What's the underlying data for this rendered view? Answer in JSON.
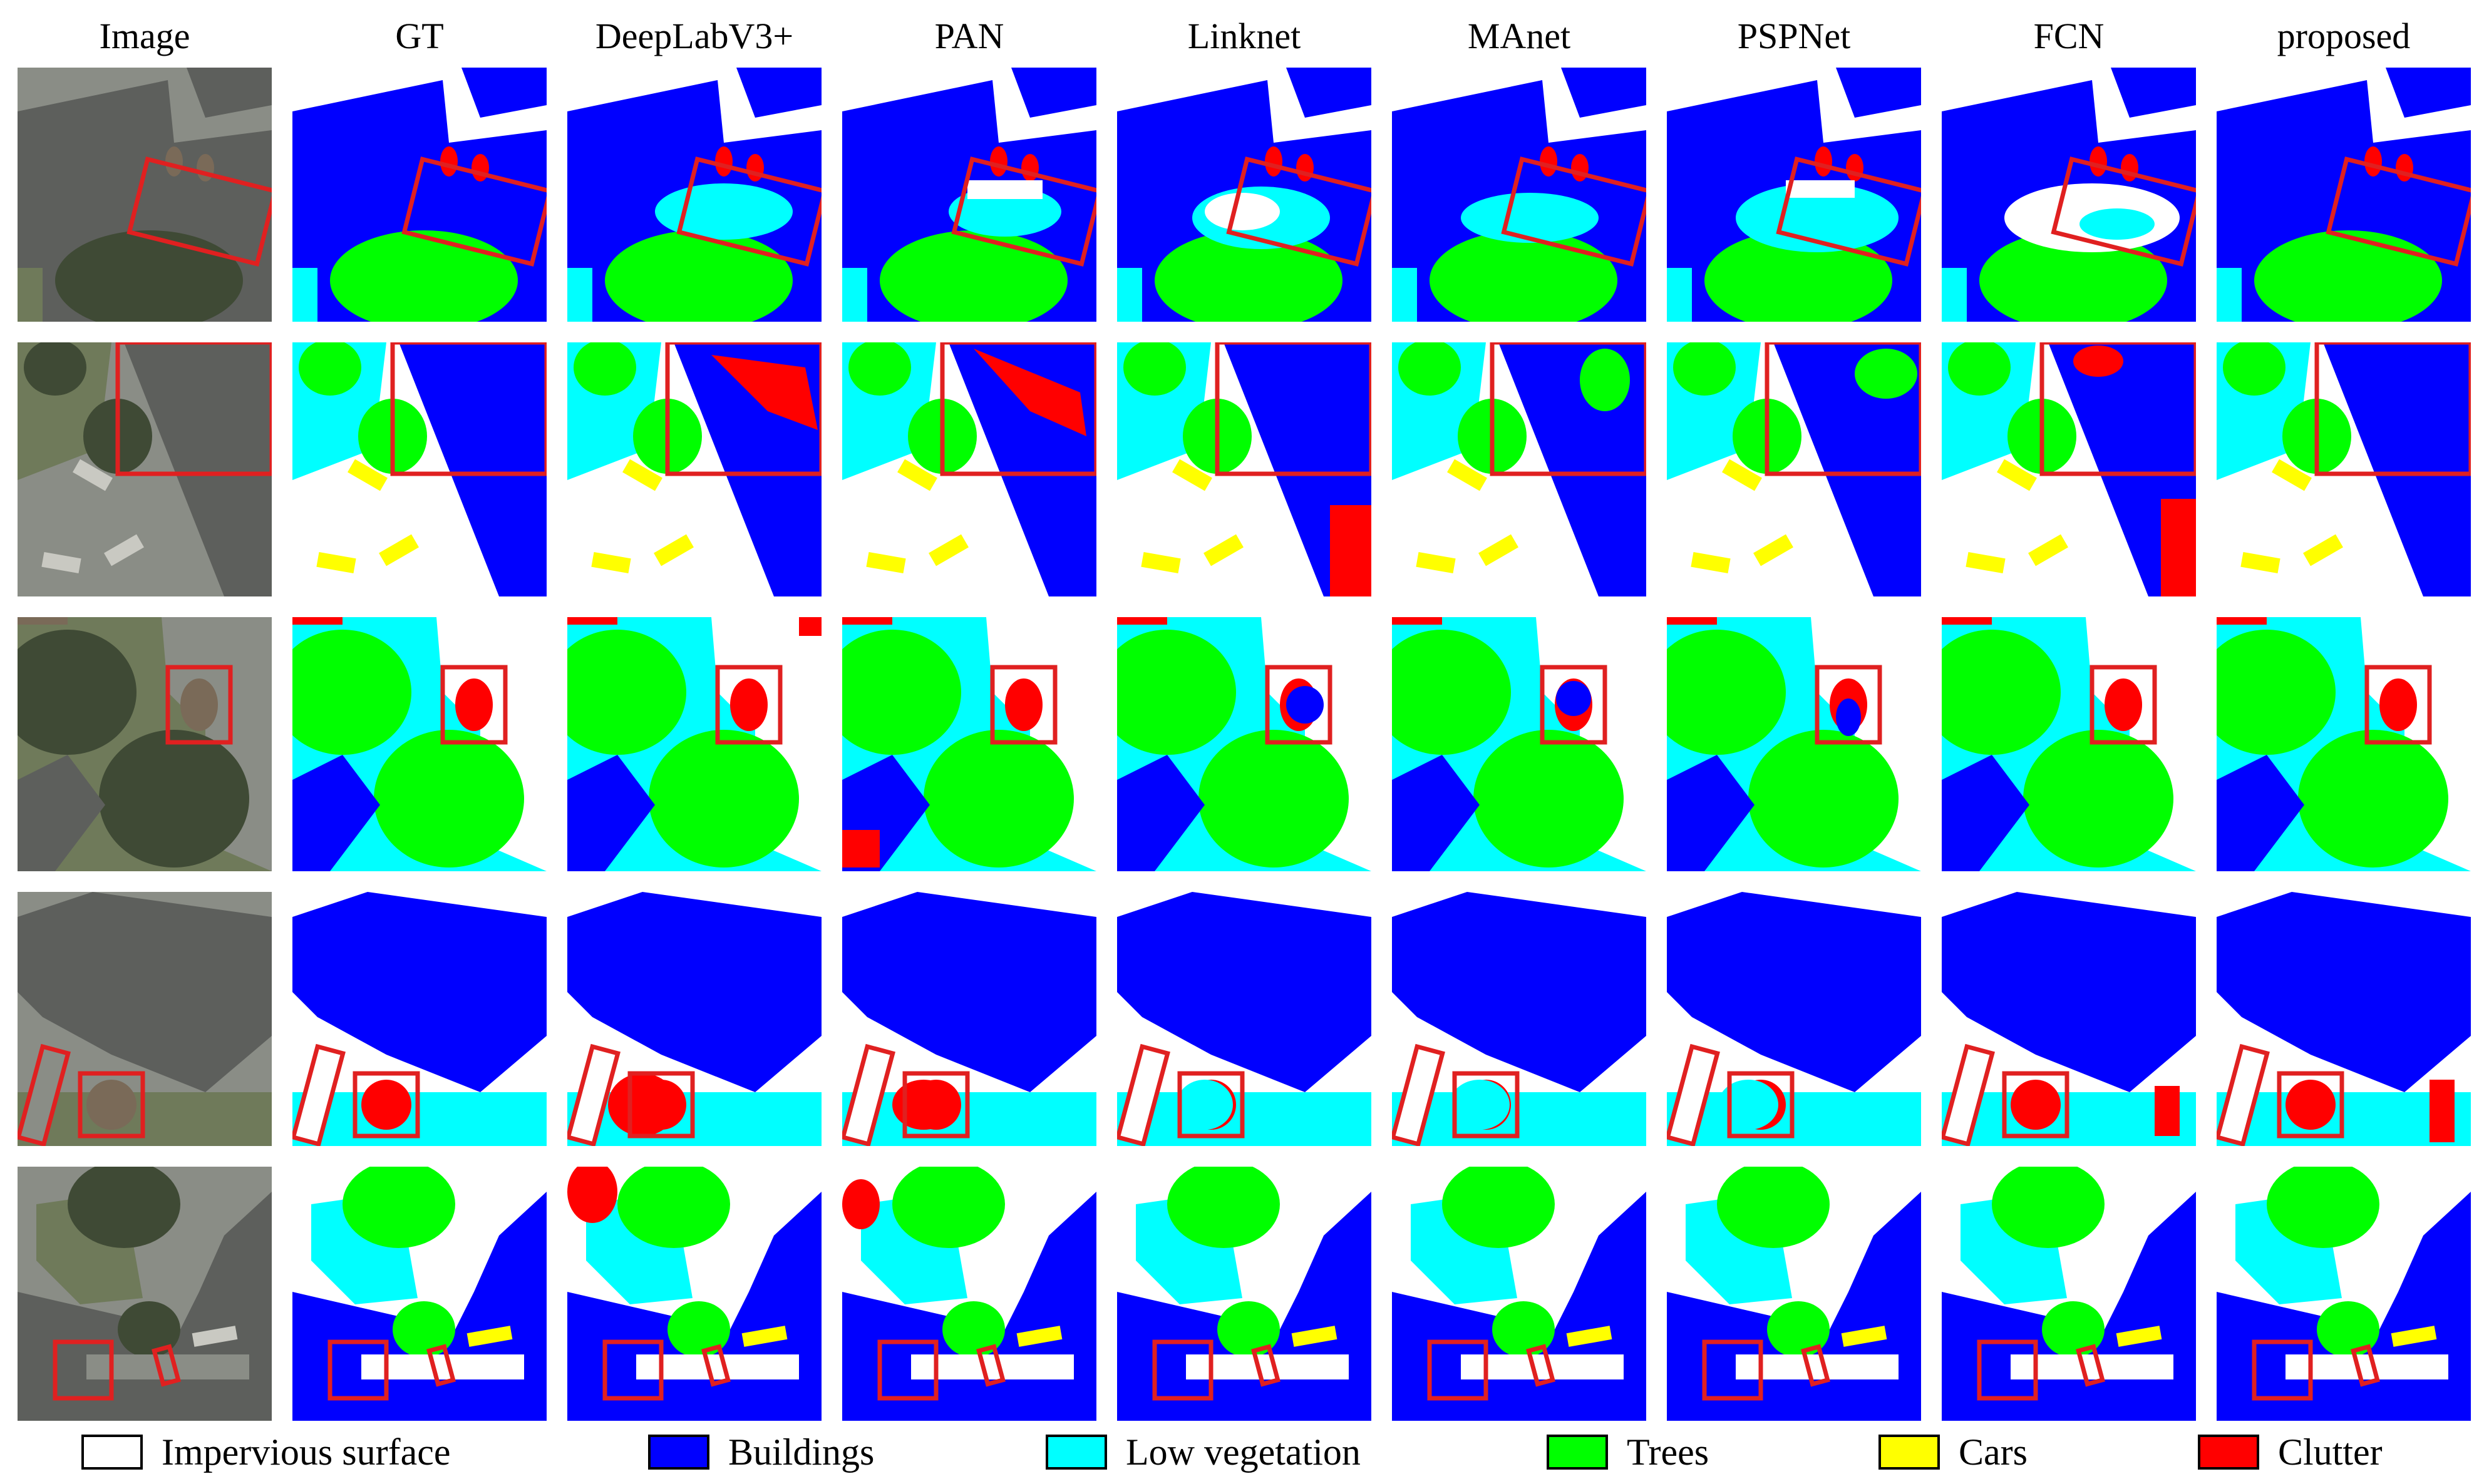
{
  "columns": [
    {
      "label": "Image"
    },
    {
      "label": "GT"
    },
    {
      "label": "DeepLabV3+"
    },
    {
      "label": "PAN"
    },
    {
      "label": "Linknet"
    },
    {
      "label": "MAnet"
    },
    {
      "label": "PSPNet"
    },
    {
      "label": "FCN"
    },
    {
      "label": "proposed"
    }
  ],
  "rows": 5,
  "legend": [
    {
      "label": "Impervious surface",
      "color": "#ffffff",
      "icon": "white-swatch"
    },
    {
      "label": "Buildings",
      "color": "#0000ff",
      "icon": "blue-swatch"
    },
    {
      "label": "Low vegetation",
      "color": "#00ffff",
      "icon": "cyan-swatch"
    },
    {
      "label": "Trees",
      "color": "#00ff00",
      "icon": "green-swatch"
    },
    {
      "label": "Cars",
      "color": "#ffff00",
      "icon": "yellow-swatch"
    },
    {
      "label": "Clutter",
      "color": "#ff0000",
      "icon": "red-swatch"
    }
  ],
  "highlight_color": "#e02020"
}
